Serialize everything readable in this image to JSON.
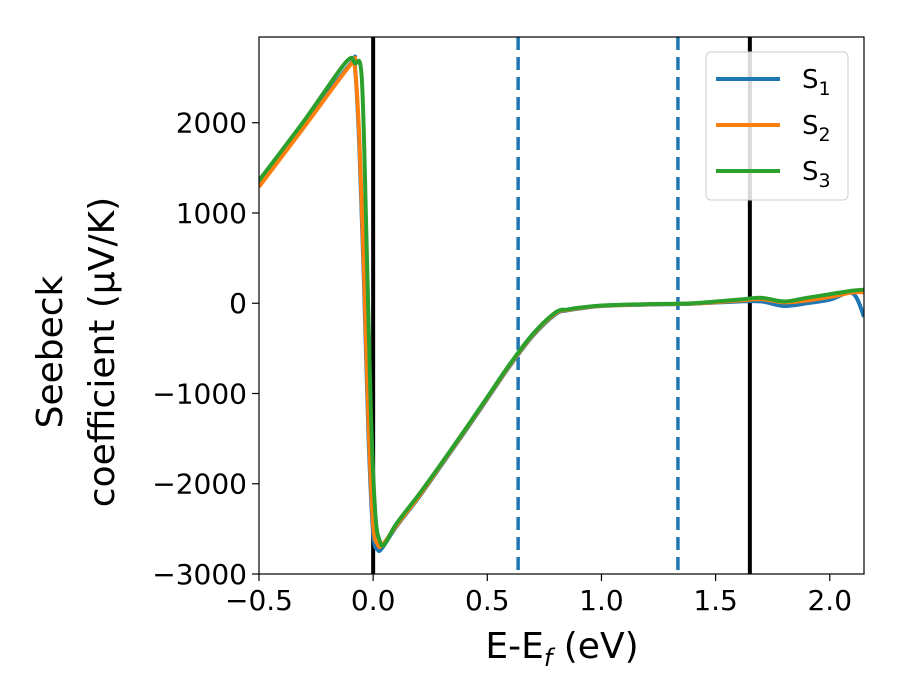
{
  "chart_data": {
    "type": "line",
    "xlabel": "E-E",
    "xlabel_sub": "f",
    "xlabel_unit": " (eV)",
    "ylabel_line1": "Seebeck",
    "ylabel_line2": "coefficient  (μV/K)",
    "xlim": [
      -0.5,
      2.15
    ],
    "ylim": [
      -3000,
      2950
    ],
    "x_ticks": [
      -0.5,
      0.0,
      0.5,
      1.0,
      1.5,
      2.0
    ],
    "x_tick_labels": [
      "−0.5",
      "0.0",
      "0.5",
      "1.0",
      "1.5",
      "2.0"
    ],
    "y_ticks": [
      -3000,
      -2000,
      -1000,
      0,
      1000,
      2000
    ],
    "y_tick_labels": [
      "−3000",
      "−2000",
      "−1000",
      "0",
      "1000",
      "2000"
    ],
    "grid": false,
    "legend_position": "top-right",
    "vertical_lines": [
      {
        "x": 0.0,
        "style": "solid",
        "color": "#000000"
      },
      {
        "x": 1.65,
        "style": "solid",
        "color": "#000000"
      },
      {
        "x": 0.635,
        "style": "dashed",
        "color": "#1f77b4"
      },
      {
        "x": 1.335,
        "style": "dashed",
        "color": "#1f77b4"
      }
    ],
    "series": [
      {
        "name": "S",
        "sub": "1",
        "color": "#1f77b4",
        "x": [
          -0.5,
          -0.3,
          -0.1,
          -0.08,
          -0.06,
          -0.04,
          -0.02,
          0.0,
          0.02,
          0.04,
          0.1,
          0.2,
          0.3,
          0.4,
          0.5,
          0.6,
          0.7,
          0.8,
          0.85,
          0.9,
          1.0,
          1.2,
          1.4,
          1.6,
          1.7,
          1.8,
          1.9,
          2.0,
          2.1,
          2.15
        ],
        "y": [
          1320,
          1990,
          2650,
          2620,
          1700,
          200,
          -1500,
          -2550,
          -2730,
          -2710,
          -2480,
          -2150,
          -1790,
          -1430,
          -1060,
          -690,
          -360,
          -120,
          -80,
          -60,
          -30,
          -15,
          -5,
          20,
          20,
          -30,
          0,
          40,
          110,
          -150
        ]
      },
      {
        "name": "S",
        "sub": "2",
        "color": "#ff7f0e",
        "x": [
          -0.5,
          -0.3,
          -0.1,
          -0.08,
          -0.06,
          -0.04,
          -0.02,
          0.0,
          0.02,
          0.04,
          0.1,
          0.2,
          0.3,
          0.4,
          0.5,
          0.6,
          0.7,
          0.8,
          0.85,
          0.9,
          1.0,
          1.2,
          1.4,
          1.6,
          1.7,
          1.8,
          1.9,
          2.0,
          2.1,
          2.15
        ],
        "y": [
          1290,
          1960,
          2640,
          2610,
          1800,
          350,
          -1350,
          -2450,
          -2670,
          -2680,
          -2470,
          -2140,
          -1780,
          -1420,
          -1050,
          -680,
          -350,
          -110,
          -75,
          -55,
          -28,
          -12,
          -3,
          30,
          45,
          10,
          30,
          70,
          120,
          120
        ]
      },
      {
        "name": "S",
        "sub": "3",
        "color": "#2ca02c",
        "x": [
          -0.5,
          -0.3,
          -0.12,
          -0.08,
          -0.05,
          -0.03,
          -0.01,
          0.01,
          0.03,
          0.05,
          0.1,
          0.2,
          0.3,
          0.4,
          0.5,
          0.6,
          0.7,
          0.8,
          0.85,
          0.9,
          1.0,
          1.2,
          1.4,
          1.6,
          1.7,
          1.8,
          1.9,
          2.0,
          2.1,
          2.15
        ],
        "y": [
          1360,
          2030,
          2670,
          2660,
          2500,
          800,
          -1200,
          -2350,
          -2640,
          -2670,
          -2450,
          -2120,
          -1770,
          -1410,
          -1040,
          -670,
          -340,
          -100,
          -70,
          -50,
          -25,
          -10,
          0,
          40,
          60,
          20,
          60,
          100,
          140,
          150
        ]
      }
    ]
  }
}
